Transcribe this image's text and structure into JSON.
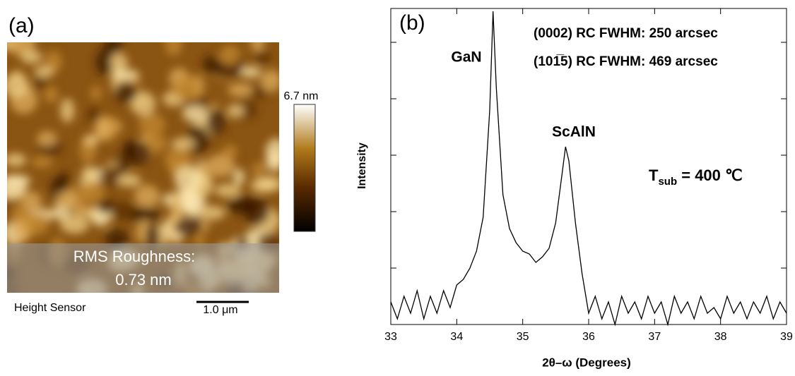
{
  "afm_image": {
    "panel_label": "(a)",
    "colorbar_label": "6.7 nm",
    "overlay": [
      "RMS Roughness:",
      "0.73 nm"
    ],
    "caption": "Height Sensor",
    "scale_bar": "1.0 μm"
  },
  "chart_data": {
    "type": "line",
    "panel_label": "(b)",
    "xlabel": "2θ–ω (Degrees)",
    "ylabel": "Intensity",
    "color": "#000000",
    "annotations": [
      "GaN",
      "ScAlN",
      "(0002) RC FWHM: 250 arcsec",
      "(101̅5) RC FWHM: 469 arcsec"
    ],
    "temperature": {
      "symbol": "T",
      "subscript": "sub",
      "text": " = 400 ℃"
    },
    "x": [
      33.0,
      33.1,
      33.2,
      33.3,
      33.4,
      33.5,
      33.6,
      33.7,
      33.8,
      33.9,
      34.0,
      34.1,
      34.2,
      34.3,
      34.4,
      34.5,
      34.55,
      34.6,
      34.7,
      34.8,
      34.9,
      35.0,
      35.1,
      35.2,
      35.3,
      35.4,
      35.5,
      35.6,
      35.65,
      35.7,
      35.8,
      35.9,
      36.0,
      36.1,
      36.2,
      36.3,
      36.4,
      36.5,
      36.6,
      36.7,
      36.8,
      36.9,
      37.0,
      37.1,
      37.2,
      37.3,
      37.4,
      37.5,
      37.6,
      37.7,
      37.8,
      37.9,
      38.0,
      38.1,
      38.2,
      38.3,
      38.4,
      38.5,
      38.6,
      38.7,
      38.8,
      38.9,
      39.0
    ],
    "values": [
      0.4,
      0.1,
      0.5,
      0.2,
      0.6,
      0.1,
      0.5,
      0.2,
      0.6,
      0.3,
      0.7,
      0.8,
      1.0,
      1.3,
      1.9,
      3.8,
      5.55,
      4.2,
      2.3,
      1.7,
      1.45,
      1.3,
      1.25,
      1.1,
      1.2,
      1.35,
      1.8,
      2.7,
      3.15,
      2.9,
      1.8,
      0.9,
      0.2,
      0.5,
      0.1,
      0.4,
      0.0,
      0.5,
      0.2,
      0.4,
      0.1,
      0.5,
      0.2,
      0.4,
      0.0,
      0.5,
      0.2,
      0.4,
      0.1,
      0.5,
      0.2,
      0.3,
      0.1,
      0.5,
      0.2,
      0.4,
      0.1,
      0.4,
      0.2,
      0.5,
      0.1,
      0.4,
      0.2
    ],
    "xlim": [
      33,
      39
    ],
    "xticks": [
      33,
      34,
      35,
      36,
      37,
      38,
      39
    ],
    "ylim": [
      0,
      5.6
    ],
    "yticks": [
      1,
      2,
      3,
      4,
      5
    ]
  }
}
